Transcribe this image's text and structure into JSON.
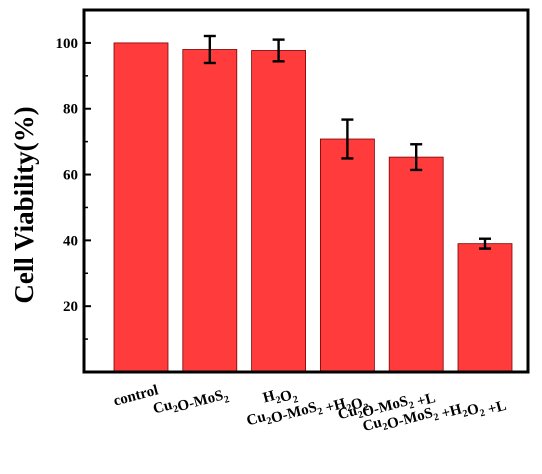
{
  "chart_data": {
    "type": "bar",
    "ylabel": "Cell Viability(%)",
    "xlabel": "",
    "ylim": [
      0,
      110
    ],
    "yticks": [
      20,
      40,
      60,
      80,
      100
    ],
    "grid": false,
    "bar_color": "#ff3b3b",
    "bar_edge_color": "#7a0000",
    "categories": [
      {
        "id": "control",
        "parts": [
          {
            "t": "control"
          }
        ]
      },
      {
        "id": "cu2o-mos2",
        "parts": [
          {
            "t": "Cu"
          },
          {
            "t": "2",
            "s": "sub"
          },
          {
            "t": "O-MoS"
          },
          {
            "t": "2",
            "s": "sub"
          }
        ]
      },
      {
        "id": "h2o2",
        "parts": [
          {
            "t": "H"
          },
          {
            "t": "2",
            "s": "sub"
          },
          {
            "t": "O"
          },
          {
            "t": "2",
            "s": "sub"
          }
        ]
      },
      {
        "id": "cu2o-mos2-h2o2",
        "parts": [
          {
            "t": "Cu"
          },
          {
            "t": "2",
            "s": "sub"
          },
          {
            "t": "O-MoS"
          },
          {
            "t": "2",
            "s": "sub"
          },
          {
            "t": " +H"
          },
          {
            "t": "2",
            "s": "sub"
          },
          {
            "t": "O"
          },
          {
            "t": "2",
            "s": "sub"
          }
        ]
      },
      {
        "id": "cu2o-mos2-l",
        "parts": [
          {
            "t": "Cu"
          },
          {
            "t": "2",
            "s": "sub"
          },
          {
            "t": "O-MoS"
          },
          {
            "t": "2",
            "s": "sub"
          },
          {
            "t": " +L"
          }
        ]
      },
      {
        "id": "cu2o-mos2-h2o2-l",
        "parts": [
          {
            "t": "Cu"
          },
          {
            "t": "2",
            "s": "sub"
          },
          {
            "t": "O-MoS"
          },
          {
            "t": "2",
            "s": "sub"
          },
          {
            "t": " +H"
          },
          {
            "t": "2",
            "s": "sub"
          },
          {
            "t": "O"
          },
          {
            "t": "2",
            "s": "sub"
          },
          {
            "t": " +L"
          }
        ]
      }
    ],
    "values": [
      100,
      98,
      97.7,
      70.8,
      65.3,
      39.0
    ],
    "errors": [
      0,
      4.1,
      3.3,
      5.9,
      3.9,
      1.5
    ]
  }
}
